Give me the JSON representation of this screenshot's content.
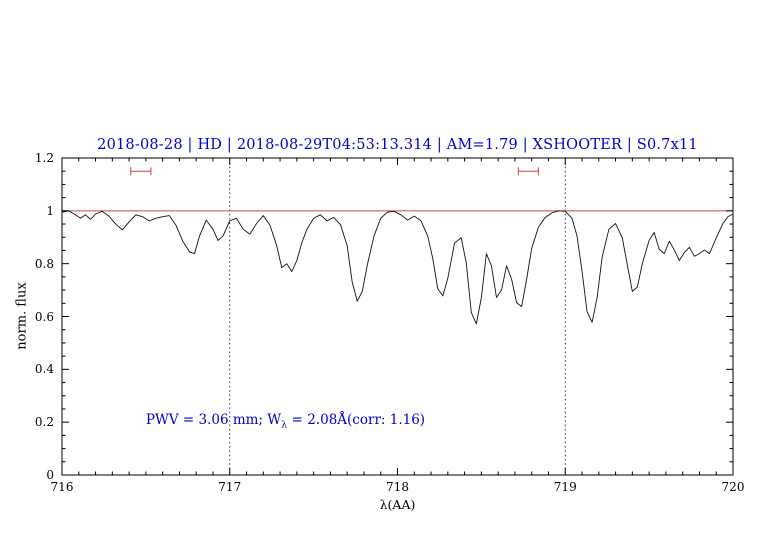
{
  "colors": {
    "accent_blue": "#0000cd",
    "red_line": "#cc4444",
    "spectrum": "#111111",
    "axis": "#000000"
  },
  "chart_data": {
    "type": "line",
    "title": "2018-08-28 | HD | 2018-08-29T04:53:13.314 | AM=1.79 | XSHOOTER | S0.7x11",
    "xlabel": "λ(AA)",
    "ylabel": "norm. flux",
    "xlim": [
      716,
      720
    ],
    "ylim": [
      0,
      1.2
    ],
    "grid": false,
    "legend": "none",
    "xticks": {
      "values": [
        716,
        717,
        718,
        719,
        720
      ],
      "labels": [
        "716",
        "717",
        "718",
        "719",
        "720"
      ],
      "minor_step": 0.1
    },
    "yticks": {
      "values": [
        0,
        0.2,
        0.4,
        0.6,
        0.8,
        1,
        1.2
      ],
      "labels": [
        "0",
        "0.2",
        "0.4",
        "0.6",
        "0.8",
        "1",
        "1.2"
      ],
      "minor_step": 0.05
    },
    "vlines": [
      717,
      719
    ],
    "hline": 1.0,
    "range_markers": [
      {
        "x0": 716.41,
        "x1": 716.53,
        "y": 1.15
      },
      {
        "x0": 718.72,
        "x1": 718.84,
        "y": 1.15
      }
    ],
    "annotation": {
      "x": 716.5,
      "y": 0.205,
      "prefix": "PWV = 3.06 mm; W",
      "sub": "λ",
      "suffix": " = 2.08Å(corr: 1.16)"
    },
    "series": [
      {
        "name": "telluric-spectrum",
        "x": [
          716.0,
          716.04,
          716.08,
          716.11,
          716.14,
          716.17,
          716.2,
          716.24,
          716.28,
          716.32,
          716.36,
          716.4,
          716.44,
          716.48,
          716.52,
          716.56,
          716.6,
          716.64,
          716.68,
          716.72,
          716.76,
          716.79,
          716.82,
          716.86,
          716.9,
          716.93,
          716.96,
          717.0,
          717.04,
          717.08,
          717.12,
          717.16,
          717.2,
          717.24,
          717.28,
          717.31,
          717.34,
          717.37,
          717.4,
          717.43,
          717.46,
          717.5,
          717.54,
          717.58,
          717.62,
          717.66,
          717.7,
          717.73,
          717.76,
          717.79,
          717.82,
          717.86,
          717.9,
          717.94,
          717.98,
          718.02,
          718.06,
          718.1,
          718.14,
          718.18,
          718.21,
          718.24,
          718.27,
          718.3,
          718.34,
          718.38,
          718.41,
          718.44,
          718.47,
          718.5,
          718.53,
          718.56,
          718.59,
          718.62,
          718.65,
          718.68,
          718.71,
          718.74,
          718.77,
          718.8,
          718.84,
          718.88,
          718.92,
          718.96,
          719.0,
          719.04,
          719.07,
          719.1,
          719.13,
          719.16,
          719.19,
          719.22,
          719.26,
          719.3,
          719.34,
          719.37,
          719.4,
          719.43,
          719.46,
          719.5,
          719.53,
          719.56,
          719.59,
          719.62,
          719.65,
          719.68,
          719.71,
          719.74,
          719.77,
          719.8,
          719.83,
          719.86,
          719.9,
          719.94,
          719.97,
          720.0
        ],
        "y": [
          0.995,
          1.0,
          0.985,
          0.972,
          0.985,
          0.968,
          0.988,
          0.998,
          0.98,
          0.95,
          0.928,
          0.958,
          0.985,
          0.978,
          0.962,
          0.972,
          0.978,
          0.982,
          0.945,
          0.885,
          0.845,
          0.838,
          0.905,
          0.965,
          0.93,
          0.888,
          0.905,
          0.962,
          0.972,
          0.93,
          0.912,
          0.952,
          0.982,
          0.945,
          0.868,
          0.785,
          0.8,
          0.77,
          0.812,
          0.88,
          0.93,
          0.972,
          0.985,
          0.962,
          0.975,
          0.948,
          0.868,
          0.73,
          0.658,
          0.695,
          0.795,
          0.905,
          0.972,
          0.995,
          0.998,
          0.985,
          0.965,
          0.98,
          0.962,
          0.905,
          0.82,
          0.705,
          0.678,
          0.745,
          0.878,
          0.898,
          0.802,
          0.615,
          0.572,
          0.672,
          0.838,
          0.792,
          0.672,
          0.7,
          0.792,
          0.742,
          0.652,
          0.638,
          0.742,
          0.858,
          0.938,
          0.975,
          0.992,
          1.0,
          0.998,
          0.972,
          0.905,
          0.772,
          0.618,
          0.578,
          0.672,
          0.825,
          0.93,
          0.952,
          0.898,
          0.795,
          0.695,
          0.712,
          0.802,
          0.888,
          0.918,
          0.855,
          0.838,
          0.885,
          0.852,
          0.812,
          0.842,
          0.862,
          0.828,
          0.838,
          0.852,
          0.838,
          0.898,
          0.952,
          0.978,
          0.988
        ]
      }
    ]
  }
}
